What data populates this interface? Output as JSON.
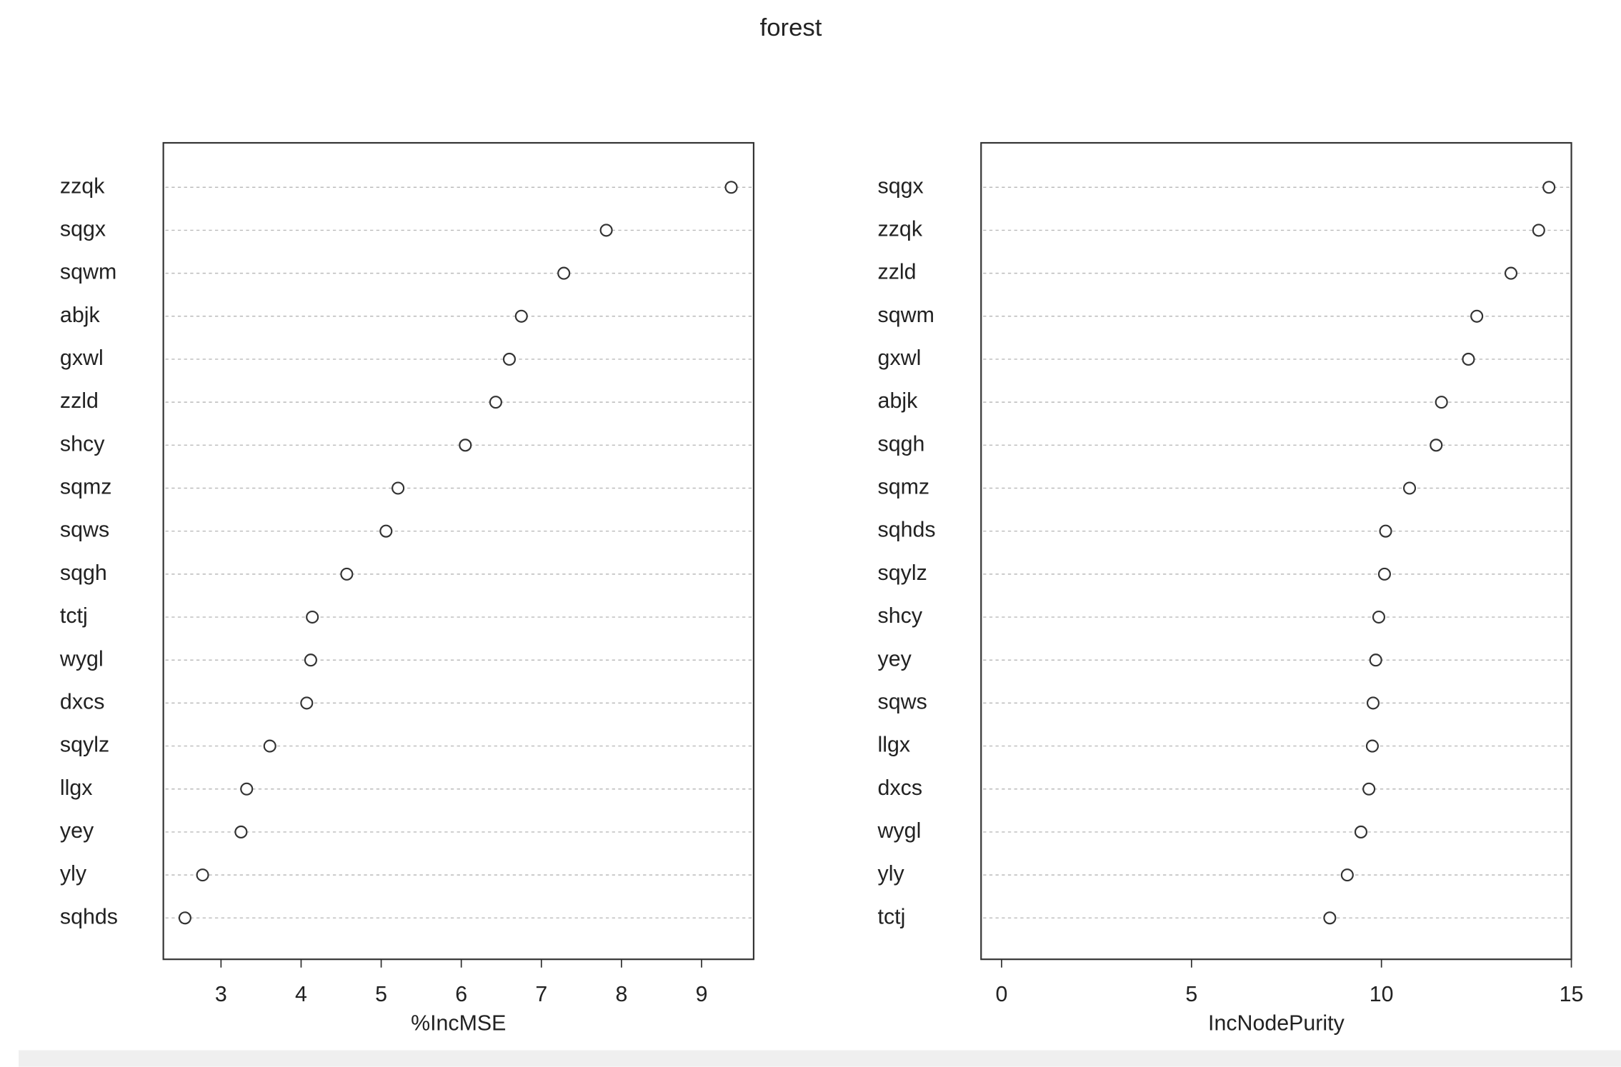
{
  "title": "forest",
  "chart_data": [
    {
      "type": "dot",
      "xlabel": "%IncMSE",
      "categories": [
        "zzqk",
        "sqgx",
        "sqwm",
        "abjk",
        "gxwl",
        "zzld",
        "shcy",
        "sqmz",
        "sqws",
        "sqgh",
        "tctj",
        "wygl",
        "dxcs",
        "sqylz",
        "llgx",
        "yey",
        "yly",
        "sqhds"
      ],
      "values": [
        9.37,
        7.81,
        7.28,
        6.75,
        6.6,
        6.43,
        6.05,
        5.21,
        5.06,
        4.57,
        4.14,
        4.12,
        4.07,
        3.61,
        3.32,
        3.25,
        2.77,
        2.55
      ],
      "xlim": [
        2.28,
        9.65
      ],
      "xticks": [
        3,
        4,
        5,
        6,
        7,
        8,
        9
      ],
      "grid": true,
      "color": "#333333"
    },
    {
      "type": "dot",
      "xlabel": "IncNodePurity",
      "categories": [
        "sqgx",
        "zzqk",
        "zzld",
        "sqwm",
        "gxwl",
        "abjk",
        "sqgh",
        "sqmz",
        "sqhds",
        "sqylz",
        "shcy",
        "yey",
        "sqws",
        "llgx",
        "dxcs",
        "wygl",
        "yly",
        "tctj"
      ],
      "values": [
        14.41,
        14.14,
        13.41,
        12.51,
        12.29,
        11.58,
        11.44,
        10.74,
        10.11,
        10.08,
        9.93,
        9.85,
        9.78,
        9.76,
        9.67,
        9.46,
        9.1,
        8.64
      ],
      "xlim": [
        -0.54,
        15.0
      ],
      "xticks": [
        0,
        5,
        10,
        15
      ],
      "grid": true,
      "color": "#333333"
    }
  ]
}
